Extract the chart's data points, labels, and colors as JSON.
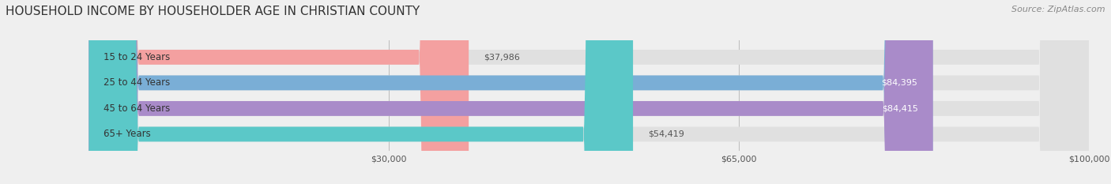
{
  "title": "HOUSEHOLD INCOME BY HOUSEHOLDER AGE IN CHRISTIAN COUNTY",
  "source_text": "Source: ZipAtlas.com",
  "categories": [
    "15 to 24 Years",
    "25 to 44 Years",
    "45 to 64 Years",
    "65+ Years"
  ],
  "values": [
    37986,
    84395,
    84415,
    54419
  ],
  "bar_colors": [
    "#f4a0a0",
    "#7aaed6",
    "#a98bc9",
    "#5bc8c8"
  ],
  "xlim": [
    0,
    100000
  ],
  "xticks": [
    30000,
    65000,
    100000
  ],
  "xtick_labels": [
    "$30,000",
    "$65,000",
    "$100,000"
  ],
  "background_color": "#efefef",
  "bar_bg_color": "#e0e0e0",
  "title_fontsize": 11,
  "source_fontsize": 8,
  "bar_height": 0.58,
  "fig_width": 14.06,
  "fig_height": 2.33
}
